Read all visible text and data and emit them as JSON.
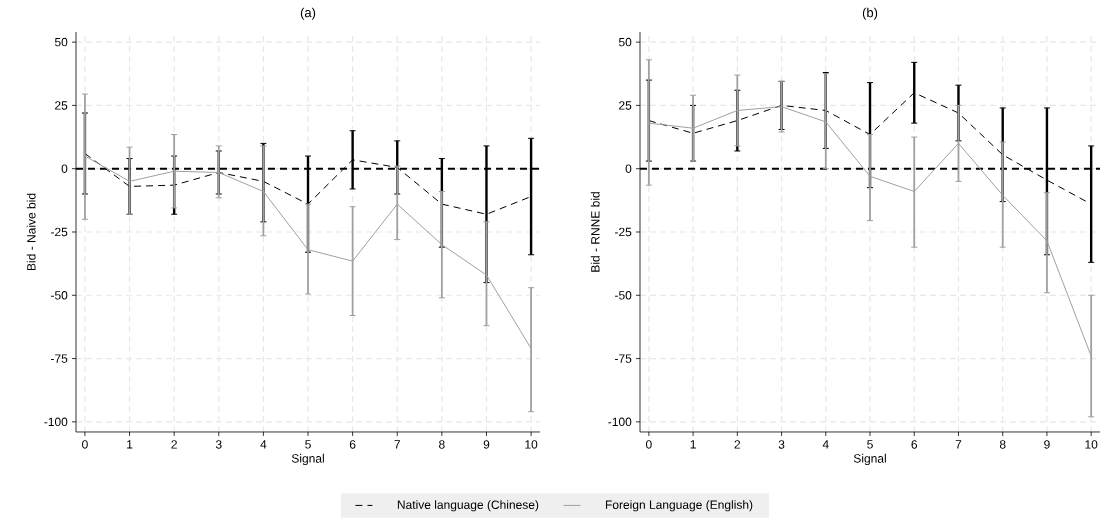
{
  "chart_data": [
    {
      "type": "line",
      "title": "(a)",
      "xlabel": "Signal",
      "ylabel": "Bid - Naive bid",
      "x": [
        0,
        1,
        2,
        3,
        4,
        5,
        6,
        7,
        8,
        9,
        10
      ],
      "xlim": [
        -0.2,
        10.2
      ],
      "xticks": [
        0,
        1,
        2,
        3,
        4,
        5,
        6,
        7,
        8,
        9,
        10
      ],
      "ylim": [
        -104,
        54
      ],
      "yticks": [
        -100,
        -75,
        -50,
        -25,
        0,
        25,
        50
      ],
      "grid": true,
      "legend": "bottom",
      "ref_lines": [
        {
          "axis": "y",
          "value": 0,
          "color": "#000000",
          "line_style": "dashed"
        }
      ],
      "series": [
        {
          "name": "Native language (Chinese)",
          "color": "#000000",
          "line_style": "dashed",
          "values": [
            6,
            -7,
            -6.5,
            -1.5,
            -5,
            -14,
            3.5,
            0.5,
            -14,
            -18,
            -11
          ],
          "errors": [
            [
              -10,
              22
            ],
            [
              -18,
              4
            ],
            [
              -18,
              5
            ],
            [
              -10,
              7
            ],
            [
              -21,
              10
            ],
            [
              -33,
              5
            ],
            [
              -8,
              15
            ],
            [
              -10,
              11
            ],
            [
              -31,
              4
            ],
            [
              -45,
              9
            ],
            [
              -34,
              12
            ]
          ]
        },
        {
          "name": "Foreign Language (English)",
          "color": "#a0a0a0",
          "line_style": "solid",
          "values": [
            5,
            -5,
            -1,
            -1.5,
            -9,
            -32,
            -36.5,
            -14,
            -30,
            -42,
            -71
          ],
          "errors": [
            [
              -20,
              29.5
            ],
            [
              -18,
              8.5
            ],
            [
              -15.5,
              13.5
            ],
            [
              -11.5,
              9
            ],
            [
              -26.5,
              9
            ],
            [
              -49.5,
              -14
            ],
            [
              -58,
              -15
            ],
            [
              -28,
              1
            ],
            [
              -51,
              -9
            ],
            [
              -62,
              -21
            ],
            [
              -96,
              -47
            ]
          ]
        }
      ]
    },
    {
      "type": "line",
      "title": "(b)",
      "xlabel": "Signal",
      "ylabel": "Bid - RNNE bid",
      "x": [
        0,
        1,
        2,
        3,
        4,
        5,
        6,
        7,
        8,
        9,
        10
      ],
      "xlim": [
        -0.2,
        10.2
      ],
      "xticks": [
        0,
        1,
        2,
        3,
        4,
        5,
        6,
        7,
        8,
        9,
        10
      ],
      "ylim": [
        -104,
        54
      ],
      "yticks": [
        -100,
        -75,
        -50,
        -25,
        0,
        25,
        50
      ],
      "grid": true,
      "ref_lines": [
        {
          "axis": "y",
          "value": 0,
          "color": "#000000",
          "line_style": "dashed"
        }
      ],
      "series": [
        {
          "color": "#000000",
          "line_style": "dashed",
          "values": [
            19,
            14,
            19,
            25,
            23,
            13.5,
            30,
            22,
            5.5,
            -4.5,
            -14
          ],
          "errors": [
            [
              3,
              35
            ],
            [
              3,
              25
            ],
            [
              7,
              31
            ],
            [
              15.5,
              34.5
            ],
            [
              8,
              38
            ],
            [
              -7.5,
              34
            ],
            [
              18,
              42
            ],
            [
              11,
              33
            ],
            [
              -13,
              24
            ],
            [
              -34,
              24
            ],
            [
              -37,
              9
            ]
          ]
        },
        {
          "color": "#a0a0a0",
          "line_style": "solid",
          "values": [
            18,
            16,
            23,
            24.5,
            18.5,
            -3,
            -9,
            10,
            -10.5,
            -28.5,
            -74
          ],
          "errors": [
            [
              -6.5,
              43
            ],
            [
              3,
              29
            ],
            [
              9,
              37
            ],
            [
              14.5,
              34.5
            ],
            [
              0,
              37.5
            ],
            [
              -20.5,
              13.5
            ],
            [
              -31,
              12.5
            ],
            [
              -5,
              25
            ],
            [
              -31,
              10.5
            ],
            [
              -49,
              -9.5
            ],
            [
              -98,
              -50
            ]
          ]
        }
      ]
    }
  ]
}
